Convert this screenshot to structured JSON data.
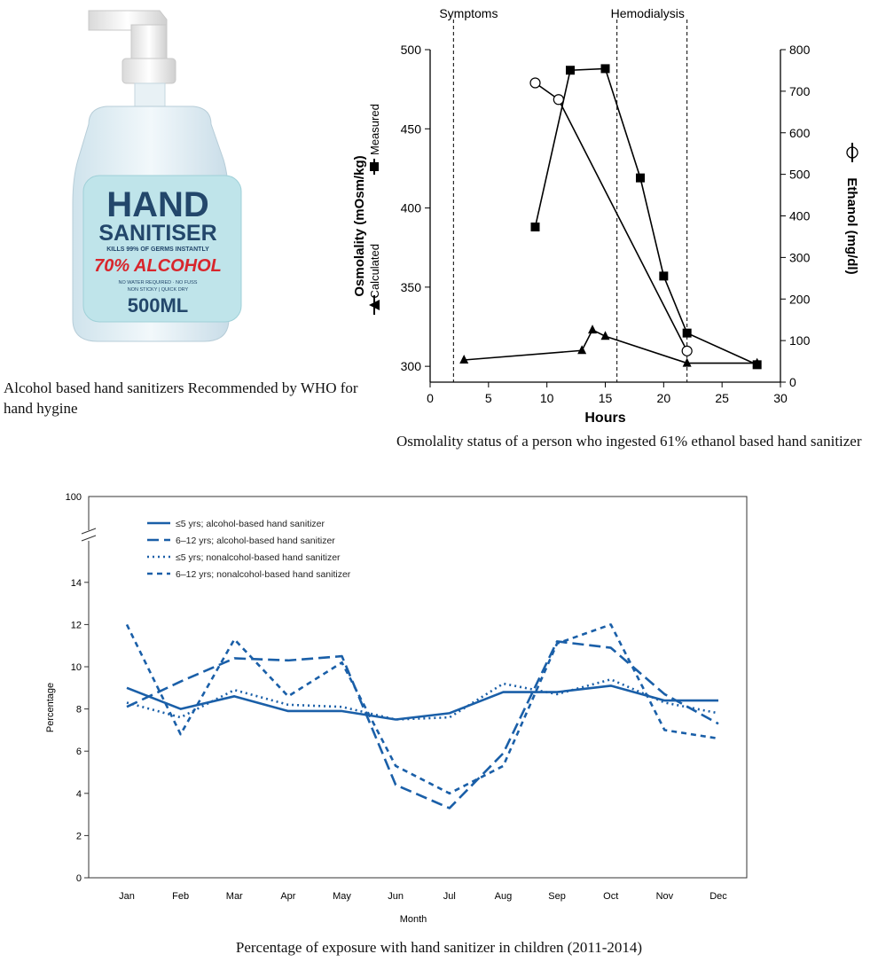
{
  "bottle": {
    "brand_line1": "HAND",
    "brand_line2": "SANITISER",
    "tagline": "KILLS 99% OF GERMS INSTANTLY",
    "alcohol": "70% ALCOHOL",
    "small1": "NO WATER REQUIRED · NO FUSS",
    "small2": "NON STICKY | QUICK DRY",
    "volume": "500ML",
    "caption": "Alcohol based hand sanitizers Recommended by WHO for hand hygine"
  },
  "chart1": {
    "caption": "Osmolality status of a person who ingested 61% ethanol based hand sanitizer",
    "chart_data": {
      "type": "line",
      "xlabel": "Hours",
      "xlim": [
        0,
        30
      ],
      "xticks": [
        0,
        5,
        10,
        15,
        20,
        25,
        30
      ],
      "ylabel_left": "Osmolality  (mOsm/kg)",
      "ylabel_left_measured": "Measured",
      "ylabel_left_calculated": "Calculated",
      "ylim_left": [
        290,
        500
      ],
      "yticks_left": [
        300,
        350,
        400,
        450,
        500
      ],
      "ylabel_right": "Ethanol (mg/dl)",
      "ylim_right": [
        0,
        800
      ],
      "yticks_right": [
        0,
        100,
        200,
        300,
        400,
        500,
        600,
        700,
        800
      ],
      "annotations": [
        {
          "label": "Symptoms",
          "x": 2
        },
        {
          "label": "Hemodialysis",
          "x": 16
        },
        {
          "label": "",
          "x": 22
        }
      ],
      "series": [
        {
          "name": "Measured",
          "axis": "left",
          "marker": "square",
          "x": [
            9,
            12,
            15,
            18,
            20,
            22,
            28
          ],
          "y": [
            388,
            487,
            488,
            419,
            357,
            321,
            301
          ]
        },
        {
          "name": "Calculated",
          "axis": "left",
          "marker": "triangle",
          "x": [
            2.9,
            13,
            13.9,
            15,
            22,
            28
          ],
          "y": [
            304,
            310,
            323,
            319,
            302,
            302
          ]
        },
        {
          "name": "Ethanol",
          "axis": "right",
          "marker": "circle",
          "x": [
            9,
            11,
            22
          ],
          "y": [
            720,
            680,
            75
          ]
        }
      ]
    }
  },
  "chart2": {
    "caption": "Percentage of exposure with hand sanitizer in children (2011-2014)",
    "chart_data": {
      "type": "line",
      "xlabel": "Month",
      "ylabel": "Percentage",
      "categories": [
        "Jan",
        "Feb",
        "Mar",
        "Apr",
        "May",
        "Jun",
        "Jul",
        "Aug",
        "Sep",
        "Oct",
        "Nov",
        "Dec"
      ],
      "yticks": [
        0,
        2,
        4,
        6,
        8,
        10,
        12,
        14
      ],
      "ylim": [
        0,
        15
      ],
      "axis_break_label": "100",
      "legend": [
        "≤5 yrs;  alcohol-based hand sanitizer",
        "6–12 yrs; alcohol-based hand sanitizer",
        "≤5 yrs;  nonalcohol-based hand sanitizer",
        "6–12 yrs; nonalcohol-based hand sanitizer"
      ],
      "series": [
        {
          "name": "≤5 yrs;  alcohol-based hand sanitizer",
          "style": "solid",
          "values": [
            9.0,
            8.0,
            8.6,
            7.9,
            7.9,
            7.5,
            7.8,
            8.8,
            8.8,
            9.1,
            8.4,
            8.4
          ]
        },
        {
          "name": "6–12 yrs; alcohol-based hand sanitizer",
          "style": "dashed",
          "values": [
            8.1,
            9.3,
            10.4,
            10.3,
            10.5,
            4.4,
            3.3,
            5.9,
            11.2,
            10.9,
            8.7,
            7.3
          ]
        },
        {
          "name": "≤5 yrs;  nonalcohol-based hand sanitizer",
          "style": "dotted",
          "values": [
            8.3,
            7.6,
            8.9,
            8.2,
            8.1,
            7.5,
            7.6,
            9.2,
            8.7,
            9.4,
            8.3,
            7.8
          ]
        },
        {
          "name": "6–12 yrs; nonalcohol-based hand sanitizer",
          "style": "shortdash",
          "values": [
            12.0,
            6.8,
            11.3,
            8.6,
            10.2,
            5.3,
            4.0,
            5.3,
            11.1,
            12.0,
            7.0,
            6.6
          ]
        }
      ]
    }
  },
  "colors": {
    "series_blue": "#1a5fa8",
    "black": "#000000",
    "label_teal": "#23476b",
    "alcohol_red": "#d8262c"
  }
}
